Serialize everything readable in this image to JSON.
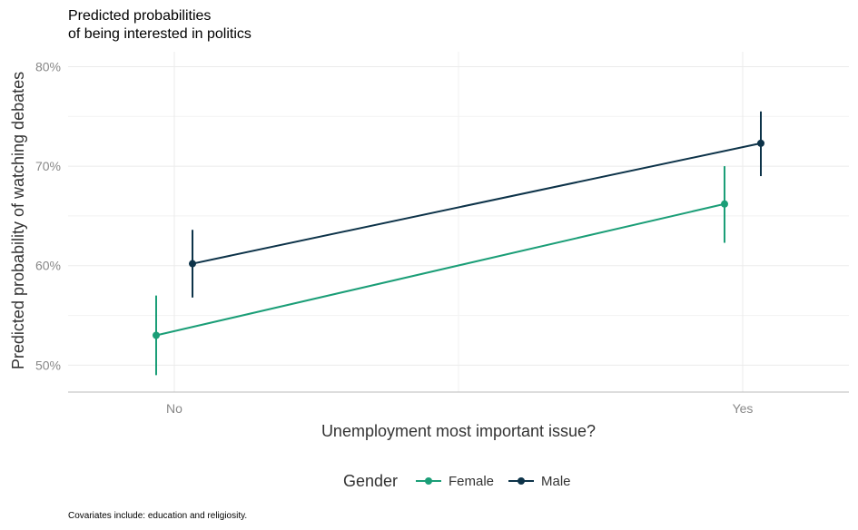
{
  "chart_data": {
    "type": "line",
    "title": "Predicted probabilities\nof being interested in politics",
    "xlabel": "Unemployment most important issue?",
    "ylabel": "Predicted probability of watching debates",
    "categories": [
      "No",
      "Yes"
    ],
    "ylim": [
      0.473,
      0.815
    ],
    "yticks": [
      0.5,
      0.6,
      0.7,
      0.8
    ],
    "ytick_labels": [
      "50%",
      "60%",
      "70%",
      "80%"
    ],
    "grid": true,
    "legend": {
      "title": "Gender",
      "position": "bottom"
    },
    "series": [
      {
        "name": "Female",
        "color": "#1b9e77",
        "values": [
          0.53,
          0.662
        ],
        "lower": [
          0.49,
          0.623
        ],
        "upper": [
          0.57,
          0.7
        ]
      },
      {
        "name": "Male",
        "color": "#0d3349",
        "values": [
          0.602,
          0.723
        ],
        "lower": [
          0.568,
          0.69
        ],
        "upper": [
          0.636,
          0.755
        ]
      }
    ],
    "caption": "Covariates include: education and religiosity."
  }
}
